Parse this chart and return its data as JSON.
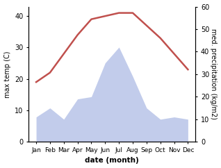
{
  "months": [
    "Jan",
    "Feb",
    "Mar",
    "Apr",
    "May",
    "Jun",
    "Jul",
    "Aug",
    "Sep",
    "Oct",
    "Nov",
    "Dec"
  ],
  "temperature": [
    19,
    22,
    28,
    34,
    39,
    40,
    41,
    41,
    37,
    33,
    28,
    23
  ],
  "precipitation": [
    11,
    15,
    10,
    19,
    20,
    35,
    42,
    29,
    15,
    10,
    11,
    10
  ],
  "temp_ylim": [
    0,
    43
  ],
  "precip_ylim": [
    0,
    60
  ],
  "temp_yticks": [
    0,
    10,
    20,
    30,
    40
  ],
  "precip_yticks": [
    0,
    10,
    20,
    30,
    40,
    50,
    60
  ],
  "ylabel_left": "max temp (C)",
  "ylabel_right": "med. precipitation (kg/m2)",
  "xlabel": "date (month)",
  "line_color": "#c0504d",
  "fill_color": "#b8c4e8",
  "fill_alpha": 0.85,
  "line_width": 1.8,
  "bg_color": "#ffffff",
  "figsize": [
    3.18,
    2.42
  ],
  "dpi": 100
}
